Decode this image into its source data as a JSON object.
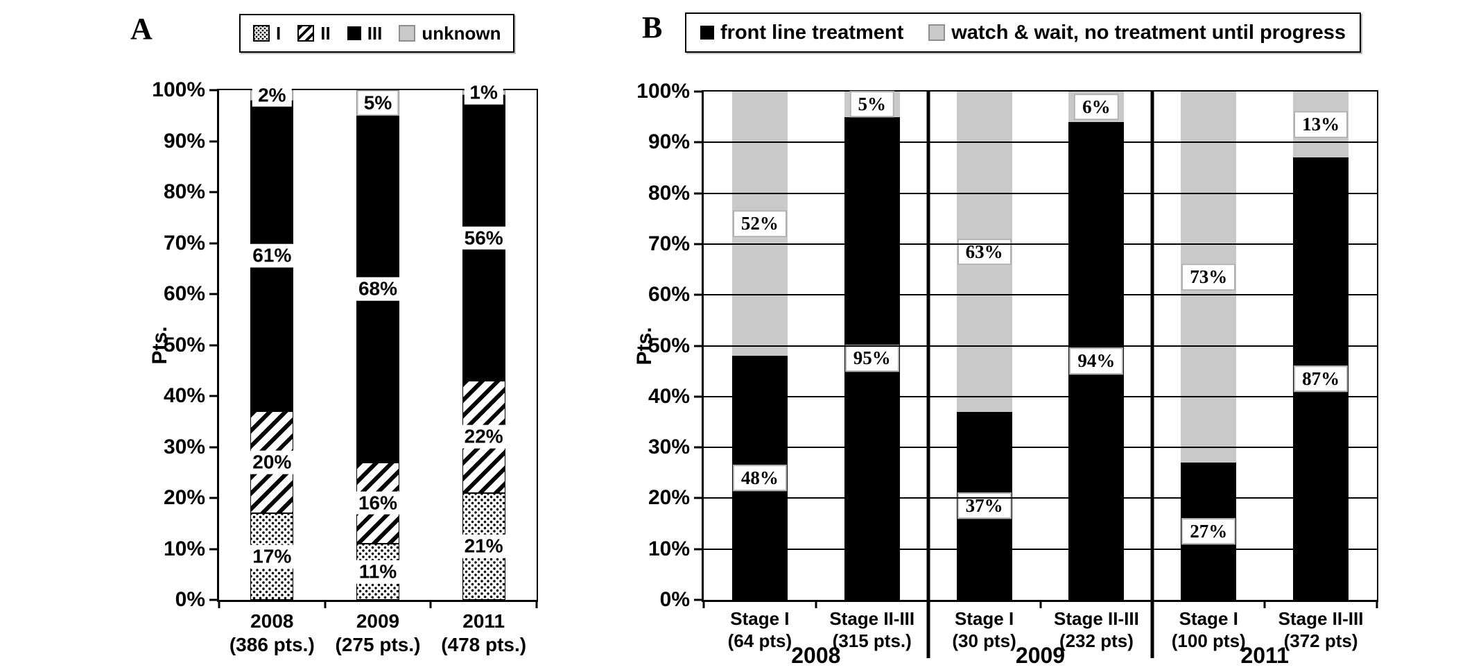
{
  "colors": {
    "black": "#000000",
    "gray": "#c9c9c9"
  },
  "chart_data": [
    {
      "panel_label": "A",
      "type": "bar",
      "stacked": true,
      "title": "",
      "ylabel": "Pts.",
      "ylim": [
        0,
        100
      ],
      "grid": false,
      "legend_position": "top",
      "y_tick_labels": [
        "0%",
        "10%",
        "20%",
        "30%",
        "40%",
        "50%",
        "60%",
        "70%",
        "80%",
        "90%",
        "100%"
      ],
      "categories": [
        {
          "line1": "2008",
          "line2": "(386 pts.)"
        },
        {
          "line1": "2009",
          "line2": "(275 pts.)"
        },
        {
          "line1": "2011",
          "line2": "(478 pts.)"
        }
      ],
      "series": [
        {
          "name": "I",
          "pattern": "dots",
          "values": [
            17,
            11,
            21
          ]
        },
        {
          "name": "II",
          "pattern": "hatch",
          "values": [
            20,
            16,
            22
          ]
        },
        {
          "name": "III",
          "pattern": "solid-black",
          "values": [
            61,
            68,
            56
          ]
        },
        {
          "name": "unknown",
          "pattern": "solid-gray",
          "values": [
            2,
            5,
            1
          ]
        }
      ]
    },
    {
      "panel_label": "B",
      "type": "bar",
      "stacked": true,
      "title": "",
      "ylabel": "Pts.",
      "ylim": [
        0,
        100
      ],
      "grid": true,
      "legend_position": "top",
      "y_tick_labels": [
        "0%",
        "10%",
        "20%",
        "30%",
        "40%",
        "50%",
        "60%",
        "70%",
        "80%",
        "90%",
        "100%"
      ],
      "categories": [
        {
          "line1": "Stage I",
          "line2": "(64 pts)",
          "group": "2008"
        },
        {
          "line1": "Stage II-III",
          "line2": "(315 pts.)",
          "group": "2008"
        },
        {
          "line1": "Stage I",
          "line2": "(30 pts)",
          "group": "2009"
        },
        {
          "line1": "Stage II-III",
          "line2": "(232 pts)",
          "group": "2009"
        },
        {
          "line1": "Stage I",
          "line2": "(100 pts)",
          "group": "2011"
        },
        {
          "line1": "Stage II-III",
          "line2": "(372 pts)",
          "group": "2011"
        }
      ],
      "groups": [
        "2008",
        "2009",
        "2011"
      ],
      "group_dividers": [
        2,
        4
      ],
      "series": [
        {
          "name": "front line treatment",
          "pattern": "solid-black",
          "values": [
            48,
            95,
            37,
            94,
            27,
            87
          ]
        },
        {
          "name": "watch & wait, no treatment until progress",
          "pattern": "solid-gray",
          "values": [
            52,
            5,
            63,
            6,
            73,
            13
          ]
        }
      ]
    }
  ]
}
